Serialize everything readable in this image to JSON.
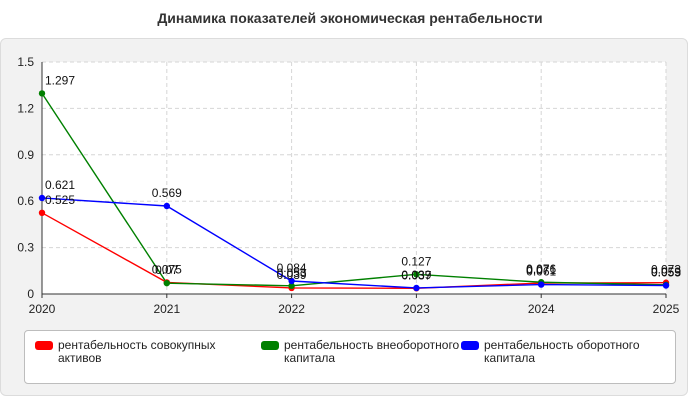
{
  "chart_data": {
    "type": "line",
    "title": "Динамика показателей экономическая рентабельности",
    "x": [
      "2020",
      "2021",
      "2022",
      "2023",
      "2024",
      "2025"
    ],
    "ylim": [
      0,
      1.5
    ],
    "yticks": [
      "0",
      "0.3",
      "0.6",
      "0.9",
      "1.2",
      "1.5"
    ],
    "grid": true,
    "legend_position": "bottom",
    "series": [
      {
        "name": "рентабельность совокупных активов",
        "color": "#ff0000",
        "values": [
          0.525,
          0.075,
          0.039,
          0.037,
          0.071,
          0.073
        ],
        "labels": [
          "0.525",
          "0.075",
          "0.039",
          "0.037",
          "0.071",
          "0.073"
        ]
      },
      {
        "name": "рентабельность внеоборотного капитала",
        "color": "#008000",
        "values": [
          1.297,
          0.07,
          0.053,
          0.127,
          0.076,
          0.059
        ],
        "labels": [
          "1.297",
          "0.07",
          "0.053",
          "0.127",
          "0.076",
          "0.059"
        ]
      },
      {
        "name": "рентабельность оборотного капитала",
        "color": "#0000ff",
        "values": [
          0.621,
          0.569,
          0.084,
          0.039,
          0.061,
          0.055
        ],
        "labels": [
          "0.621",
          "0.569",
          "0.084",
          "0.039",
          "0.061",
          "0.055"
        ]
      }
    ]
  }
}
